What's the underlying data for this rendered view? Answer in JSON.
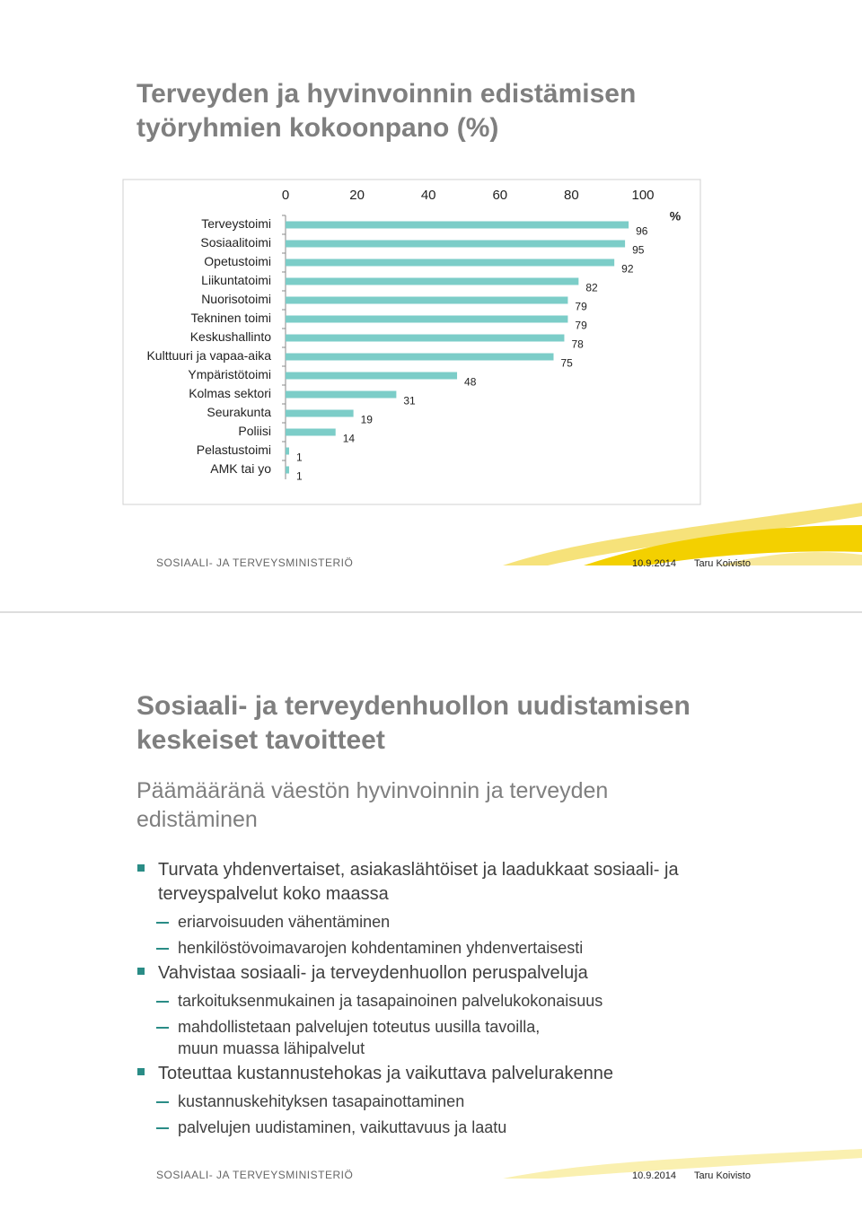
{
  "slide1": {
    "title": "Terveyden ja hyvinvoinnin edistämisen\ntyöryhmien kokoonpano (%)",
    "footer": {
      "logo": "SOSIAALI- JA TERVEYSMINISTERIÖ",
      "date": "10.9.2014",
      "author": "Taru Koivisto"
    }
  },
  "chart_data": {
    "type": "bar",
    "orientation": "horizontal",
    "xlabel": "%",
    "categories": [
      "Terveystoimi",
      "Sosiaalitoimi",
      "Opetustoimi",
      "Liikuntatoimi",
      "Nuorisotoimi",
      "Tekninen toimi",
      "Keskushallinto",
      "Kulttuuri ja vapaa-aika",
      "Ympäristötoimi",
      "Kolmas sektori",
      "Seurakunta",
      "Poliisi",
      "Pelastustoimi",
      "AMK tai yo"
    ],
    "values": [
      96,
      95,
      92,
      82,
      79,
      79,
      78,
      75,
      48,
      31,
      19,
      14,
      1,
      1
    ],
    "color": "#7ccdc8",
    "xlim": [
      0,
      100
    ],
    "xticks": [
      0,
      20,
      40,
      60,
      80,
      100
    ]
  },
  "slide2": {
    "title": "Sosiaali-  ja terveydenhuollon uudistamisen\nkeskeiset tavoitteet",
    "subtitle": "Päämääränä väestön hyvinvoinnin ja terveyden\nedistäminen",
    "bullets": [
      {
        "text": "Turvata yhdenvertaiset, asiakaslähtöiset ja laadukkaat sosiaali- ja\nterveyspalvelut koko maassa",
        "items": [
          "eriarvoisuuden vähentäminen",
          "henkilöstövoimavarojen kohdentaminen yhdenvertaisesti"
        ]
      },
      {
        "text": "Vahvistaa sosiaali- ja terveydenhuollon peruspalveluja",
        "items": [
          "tarkoituksenmukainen ja tasapainoinen palvelukokonaisuus",
          "mahdollistetaan palvelujen toteutus uusilla tavoilla,\nmuun muassa lähipalvelut"
        ]
      },
      {
        "text": "Toteuttaa kustannustehokas ja vaikuttava palvelurakenne",
        "items": [
          "kustannuskehityksen tasapainottaminen",
          "palvelujen uudistaminen, vaikuttavuus ja laatu"
        ]
      }
    ],
    "footer": {
      "logo": "SOSIAALI- JA TERVEYSMINISTERIÖ",
      "date": "10.9.2014",
      "author": "Taru Koivisto"
    }
  }
}
